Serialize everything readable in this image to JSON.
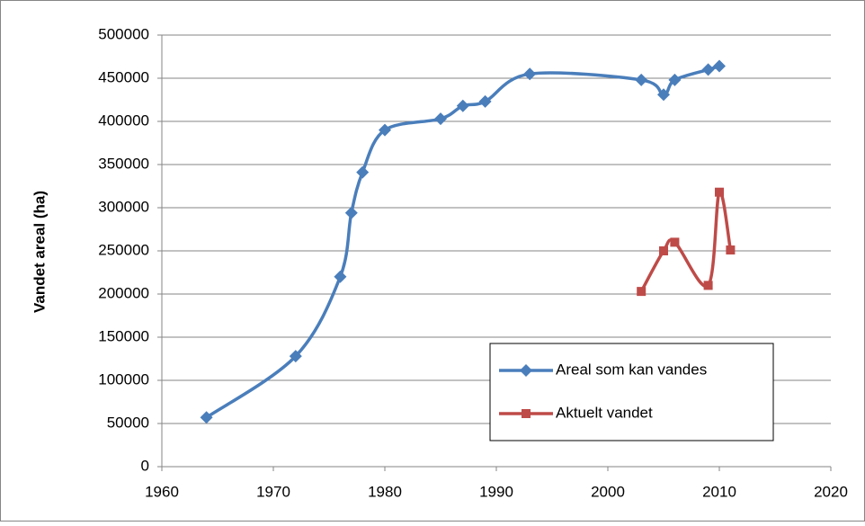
{
  "chart_data": {
    "type": "line",
    "ylabel": "Vandet areal (ha)",
    "xlim": [
      1960,
      2020
    ],
    "xticks": [
      1960,
      1970,
      1980,
      1990,
      2000,
      2010,
      2020
    ],
    "ylim": [
      0,
      500000
    ],
    "yticks": [
      0,
      50000,
      100000,
      150000,
      200000,
      250000,
      300000,
      350000,
      400000,
      450000,
      500000
    ],
    "grid": true,
    "legend": "lower right",
    "smooth": true,
    "series": [
      {
        "name": "Areal som kan vandes",
        "color": "#4a7ebb",
        "marker": "diamond",
        "x": [
          1964,
          1972,
          1976,
          1977,
          1978,
          1980,
          1985,
          1987,
          1989,
          1993,
          2003,
          2005,
          2006,
          2009,
          2010
        ],
        "values": [
          57000,
          128000,
          220000,
          294000,
          341000,
          390000,
          403000,
          418000,
          423000,
          455000,
          448000,
          431000,
          448000,
          460000,
          464000
        ]
      },
      {
        "name": "Aktuelt vandet",
        "color": "#be4b48",
        "marker": "square",
        "x": [
          2003,
          2005,
          2006,
          2009,
          2010,
          2011
        ],
        "values": [
          203000,
          250000,
          260000,
          210000,
          318000,
          251000
        ]
      }
    ]
  }
}
